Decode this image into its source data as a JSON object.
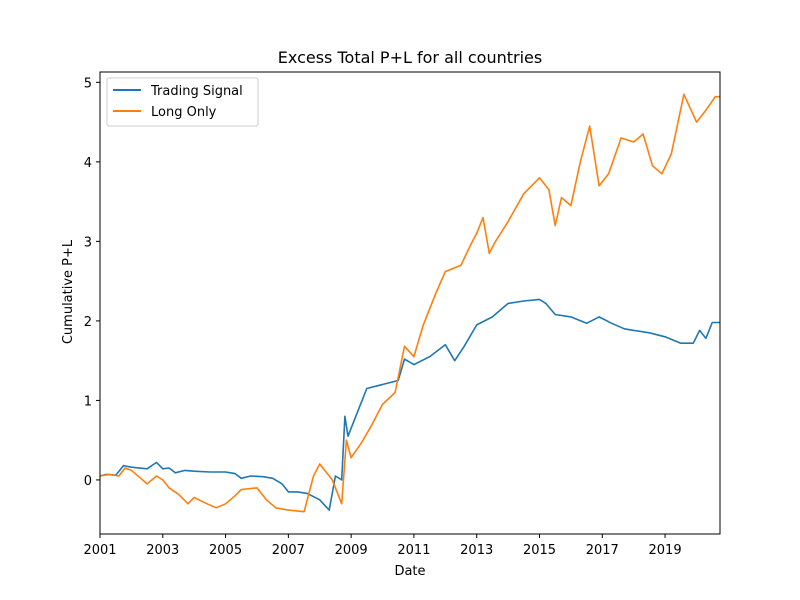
{
  "chart_data": {
    "type": "line",
    "title": "Excess Total P+L for all countries",
    "xlabel": "Date",
    "ylabel": "Cumulative P+L",
    "xlim": [
      2001.0,
      2020.75
    ],
    "ylim": [
      -0.68,
      5.13
    ],
    "x_ticks": [
      "2001",
      "2003",
      "2005",
      "2007",
      "2009",
      "2011",
      "2013",
      "2015",
      "2017",
      "2019"
    ],
    "x_tick_values": [
      2001,
      2003,
      2005,
      2007,
      2009,
      2011,
      2013,
      2015,
      2017,
      2019
    ],
    "y_ticks": [
      "0",
      "1",
      "2",
      "3",
      "4",
      "5"
    ],
    "y_tick_values": [
      0,
      1,
      2,
      3,
      4,
      5
    ],
    "legend_position": "top-left",
    "grid": false,
    "series": [
      {
        "name": "Trading Signal",
        "color": "#1f77b4",
        "points": [
          [
            2001.0,
            0.05
          ],
          [
            2001.2,
            0.07
          ],
          [
            2001.5,
            0.06
          ],
          [
            2001.75,
            0.18
          ],
          [
            2002.0,
            0.16
          ],
          [
            2002.5,
            0.14
          ],
          [
            2002.8,
            0.22
          ],
          [
            2003.0,
            0.14
          ],
          [
            2003.2,
            0.15
          ],
          [
            2003.4,
            0.09
          ],
          [
            2003.7,
            0.12
          ],
          [
            2004.0,
            0.11
          ],
          [
            2004.5,
            0.1
          ],
          [
            2005.0,
            0.1
          ],
          [
            2005.3,
            0.08
          ],
          [
            2005.5,
            0.02
          ],
          [
            2005.8,
            0.05
          ],
          [
            2006.2,
            0.04
          ],
          [
            2006.5,
            0.02
          ],
          [
            2006.8,
            -0.05
          ],
          [
            2007.0,
            -0.15
          ],
          [
            2007.3,
            -0.15
          ],
          [
            2007.6,
            -0.17
          ],
          [
            2008.0,
            -0.25
          ],
          [
            2008.3,
            -0.38
          ],
          [
            2008.5,
            0.05
          ],
          [
            2008.7,
            0.0
          ],
          [
            2008.8,
            0.8
          ],
          [
            2008.9,
            0.55
          ],
          [
            2009.2,
            0.85
          ],
          [
            2009.5,
            1.15
          ],
          [
            2010.0,
            1.2
          ],
          [
            2010.5,
            1.25
          ],
          [
            2010.7,
            1.52
          ],
          [
            2011.0,
            1.45
          ],
          [
            2011.5,
            1.55
          ],
          [
            2012.0,
            1.7
          ],
          [
            2012.3,
            1.5
          ],
          [
            2012.6,
            1.68
          ],
          [
            2013.0,
            1.95
          ],
          [
            2013.5,
            2.05
          ],
          [
            2014.0,
            2.22
          ],
          [
            2014.5,
            2.25
          ],
          [
            2015.0,
            2.27
          ],
          [
            2015.2,
            2.22
          ],
          [
            2015.5,
            2.08
          ],
          [
            2016.0,
            2.05
          ],
          [
            2016.5,
            1.97
          ],
          [
            2016.9,
            2.05
          ],
          [
            2017.3,
            1.97
          ],
          [
            2017.7,
            1.9
          ],
          [
            2018.0,
            1.88
          ],
          [
            2018.5,
            1.85
          ],
          [
            2019.0,
            1.8
          ],
          [
            2019.5,
            1.72
          ],
          [
            2019.9,
            1.72
          ],
          [
            2020.1,
            1.88
          ],
          [
            2020.3,
            1.78
          ],
          [
            2020.5,
            1.98
          ],
          [
            2020.75,
            1.98
          ]
        ]
      },
      {
        "name": "Long Only",
        "color": "#ff7f0e",
        "points": [
          [
            2001.0,
            0.05
          ],
          [
            2001.3,
            0.07
          ],
          [
            2001.6,
            0.05
          ],
          [
            2001.8,
            0.15
          ],
          [
            2002.0,
            0.12
          ],
          [
            2002.3,
            0.02
          ],
          [
            2002.5,
            -0.05
          ],
          [
            2002.8,
            0.05
          ],
          [
            2003.0,
            0.0
          ],
          [
            2003.2,
            -0.1
          ],
          [
            2003.5,
            -0.18
          ],
          [
            2003.8,
            -0.3
          ],
          [
            2004.0,
            -0.22
          ],
          [
            2004.3,
            -0.28
          ],
          [
            2004.7,
            -0.35
          ],
          [
            2005.0,
            -0.3
          ],
          [
            2005.3,
            -0.2
          ],
          [
            2005.5,
            -0.12
          ],
          [
            2006.0,
            -0.1
          ],
          [
            2006.3,
            -0.25
          ],
          [
            2006.6,
            -0.35
          ],
          [
            2007.0,
            -0.38
          ],
          [
            2007.5,
            -0.4
          ],
          [
            2007.8,
            0.05
          ],
          [
            2008.0,
            0.2
          ],
          [
            2008.4,
            0.0
          ],
          [
            2008.7,
            -0.3
          ],
          [
            2008.85,
            0.5
          ],
          [
            2009.0,
            0.28
          ],
          [
            2009.3,
            0.45
          ],
          [
            2009.6,
            0.65
          ],
          [
            2010.0,
            0.95
          ],
          [
            2010.4,
            1.1
          ],
          [
            2010.7,
            1.68
          ],
          [
            2011.0,
            1.55
          ],
          [
            2011.3,
            1.95
          ],
          [
            2011.7,
            2.35
          ],
          [
            2012.0,
            2.62
          ],
          [
            2012.5,
            2.7
          ],
          [
            2012.8,
            2.95
          ],
          [
            2013.0,
            3.1
          ],
          [
            2013.2,
            3.3
          ],
          [
            2013.4,
            2.85
          ],
          [
            2013.6,
            3.0
          ],
          [
            2014.0,
            3.25
          ],
          [
            2014.5,
            3.6
          ],
          [
            2015.0,
            3.8
          ],
          [
            2015.3,
            3.65
          ],
          [
            2015.5,
            3.2
          ],
          [
            2015.7,
            3.55
          ],
          [
            2016.0,
            3.45
          ],
          [
            2016.3,
            4.0
          ],
          [
            2016.6,
            4.45
          ],
          [
            2016.9,
            3.7
          ],
          [
            2017.2,
            3.85
          ],
          [
            2017.6,
            4.3
          ],
          [
            2018.0,
            4.25
          ],
          [
            2018.3,
            4.35
          ],
          [
            2018.6,
            3.95
          ],
          [
            2018.9,
            3.85
          ],
          [
            2019.2,
            4.1
          ],
          [
            2019.6,
            4.85
          ],
          [
            2020.0,
            4.5
          ],
          [
            2020.3,
            4.65
          ],
          [
            2020.6,
            4.82
          ],
          [
            2020.75,
            4.82
          ]
        ]
      }
    ]
  }
}
